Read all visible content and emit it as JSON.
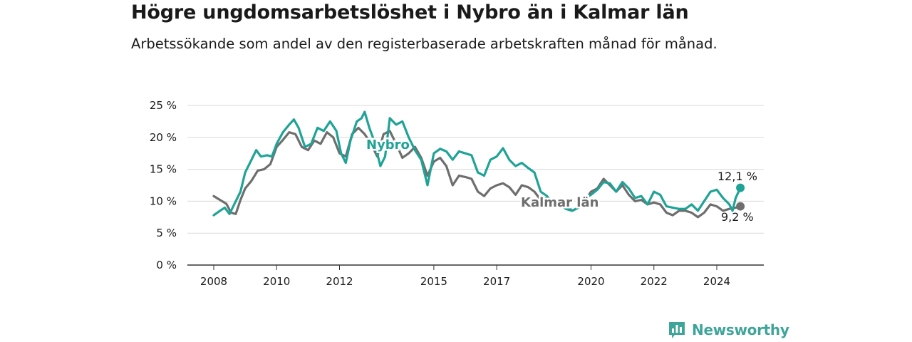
{
  "header": {
    "title": "Högre ungdomsarbetslöshet i Nybro än i Kalmar län",
    "subtitle": "Arbetssökande som andel av den registerbaserade arbetskraften månad för månad."
  },
  "brand": {
    "name": "Newsworthy",
    "icon": "bar-chart-icon",
    "color": "#3fa59a"
  },
  "chart_data": {
    "type": "line",
    "xlim": [
      2008,
      2025.2
    ],
    "ylim": [
      0,
      25
    ],
    "x_ticks": [
      {
        "value": 2008,
        "label": "2008"
      },
      {
        "value": 2010,
        "label": "2010"
      },
      {
        "value": 2012,
        "label": "2012"
      },
      {
        "value": 2015,
        "label": "2015"
      },
      {
        "value": 2017,
        "label": "2017"
      },
      {
        "value": 2020,
        "label": "2020"
      },
      {
        "value": 2022,
        "label": "2022"
      },
      {
        "value": 2024,
        "label": "2024"
      }
    ],
    "y_ticks": [
      {
        "value": 0,
        "label": "0 %"
      },
      {
        "value": 5,
        "label": "5 %"
      },
      {
        "value": 10,
        "label": "10 %"
      },
      {
        "value": 15,
        "label": "15 %"
      },
      {
        "value": 20,
        "label": "20 %"
      },
      {
        "value": 25,
        "label": "25 %"
      }
    ],
    "grid": true,
    "series": [
      {
        "name": "Kalmar län",
        "color": "#6e6e6e",
        "end_label": "9,2 %",
        "points": [
          [
            2008.0,
            10.8
          ],
          [
            2008.2,
            10.2
          ],
          [
            2008.4,
            9.6
          ],
          [
            2008.55,
            8.2
          ],
          [
            2008.7,
            8.0
          ],
          [
            2008.85,
            10.2
          ],
          [
            2009.0,
            12.0
          ],
          [
            2009.2,
            13.2
          ],
          [
            2009.4,
            14.8
          ],
          [
            2009.6,
            15.0
          ],
          [
            2009.8,
            15.8
          ],
          [
            2010.0,
            18.5
          ],
          [
            2010.2,
            19.6
          ],
          [
            2010.4,
            20.8
          ],
          [
            2010.6,
            20.5
          ],
          [
            2010.8,
            18.5
          ],
          [
            2011.0,
            18.0
          ],
          [
            2011.2,
            19.5
          ],
          [
            2011.4,
            19.0
          ],
          [
            2011.6,
            20.8
          ],
          [
            2011.8,
            20.0
          ],
          [
            2012.0,
            17.5
          ],
          [
            2012.2,
            17.0
          ],
          [
            2012.4,
            20.5
          ],
          [
            2012.6,
            21.5
          ],
          [
            2012.8,
            20.5
          ],
          [
            2013.0,
            19.0
          ],
          [
            2013.2,
            17.0
          ],
          [
            2013.4,
            20.5
          ],
          [
            2013.6,
            21.0
          ],
          [
            2013.8,
            19.0
          ],
          [
            2014.0,
            16.8
          ],
          [
            2014.2,
            17.5
          ],
          [
            2014.4,
            18.5
          ],
          [
            2014.6,
            16.8
          ],
          [
            2014.8,
            14.0
          ],
          [
            2015.0,
            16.2
          ],
          [
            2015.2,
            16.8
          ],
          [
            2015.4,
            15.5
          ],
          [
            2015.6,
            12.5
          ],
          [
            2015.8,
            14.0
          ],
          [
            2016.0,
            13.8
          ],
          [
            2016.2,
            13.5
          ],
          [
            2016.4,
            11.5
          ],
          [
            2016.6,
            10.8
          ],
          [
            2016.8,
            12.0
          ],
          [
            2017.0,
            12.5
          ],
          [
            2017.2,
            12.8
          ],
          [
            2017.4,
            12.2
          ],
          [
            2017.6,
            11.0
          ],
          [
            2017.8,
            12.5
          ],
          [
            2018.0,
            12.2
          ],
          [
            2018.2,
            11.5
          ],
          [
            2018.4,
            10.2
          ],
          [
            2018.6,
            10.5
          ],
          [
            2018.8,
            9.5
          ],
          [
            2019.0,
            10.2
          ],
          [
            2019.2,
            9.5
          ],
          [
            2019.4,
            8.5
          ],
          [
            2019.6,
            9.0
          ],
          [
            2019.8,
            10.0
          ],
          [
            2020.0,
            11.5
          ],
          [
            2020.2,
            12.0
          ],
          [
            2020.4,
            13.5
          ],
          [
            2020.6,
            12.5
          ],
          [
            2020.8,
            11.5
          ],
          [
            2021.0,
            12.5
          ],
          [
            2021.2,
            11.0
          ],
          [
            2021.4,
            10.0
          ],
          [
            2021.6,
            10.2
          ],
          [
            2021.8,
            9.5
          ],
          [
            2022.0,
            9.8
          ],
          [
            2022.2,
            9.5
          ],
          [
            2022.4,
            8.2
          ],
          [
            2022.6,
            7.8
          ],
          [
            2022.8,
            8.5
          ],
          [
            2023.0,
            8.5
          ],
          [
            2023.2,
            8.2
          ],
          [
            2023.4,
            7.5
          ],
          [
            2023.6,
            8.2
          ],
          [
            2023.8,
            9.5
          ],
          [
            2024.0,
            9.2
          ],
          [
            2024.2,
            8.5
          ],
          [
            2024.4,
            8.8
          ],
          [
            2024.6,
            9.0
          ],
          [
            2024.75,
            9.2
          ]
        ]
      },
      {
        "name": "Nybro",
        "color": "#1fa396",
        "end_label": "12,1 %",
        "points": [
          [
            2008.0,
            7.8
          ],
          [
            2008.2,
            8.5
          ],
          [
            2008.35,
            9.0
          ],
          [
            2008.5,
            8.0
          ],
          [
            2008.65,
            9.5
          ],
          [
            2008.85,
            11.5
          ],
          [
            2009.0,
            14.5
          ],
          [
            2009.2,
            16.5
          ],
          [
            2009.35,
            18.0
          ],
          [
            2009.5,
            17.0
          ],
          [
            2009.7,
            17.2
          ],
          [
            2009.85,
            17.0
          ],
          [
            2010.0,
            19.0
          ],
          [
            2010.2,
            20.8
          ],
          [
            2010.4,
            22.0
          ],
          [
            2010.55,
            22.8
          ],
          [
            2010.7,
            21.5
          ],
          [
            2010.9,
            18.5
          ],
          [
            2011.1,
            19.0
          ],
          [
            2011.3,
            21.5
          ],
          [
            2011.5,
            21.0
          ],
          [
            2011.7,
            22.5
          ],
          [
            2011.9,
            21.0
          ],
          [
            2012.05,
            17.5
          ],
          [
            2012.2,
            16.0
          ],
          [
            2012.35,
            19.5
          ],
          [
            2012.55,
            22.5
          ],
          [
            2012.7,
            23.0
          ],
          [
            2012.8,
            24.0
          ],
          [
            2012.95,
            21.5
          ],
          [
            2013.1,
            19.5
          ],
          [
            2013.3,
            15.5
          ],
          [
            2013.45,
            17.0
          ],
          [
            2013.6,
            23.0
          ],
          [
            2013.8,
            22.0
          ],
          [
            2014.0,
            22.5
          ],
          [
            2014.2,
            20.0
          ],
          [
            2014.4,
            18.0
          ],
          [
            2014.6,
            16.5
          ],
          [
            2014.8,
            12.5
          ],
          [
            2015.0,
            17.5
          ],
          [
            2015.2,
            18.2
          ],
          [
            2015.4,
            17.8
          ],
          [
            2015.6,
            16.5
          ],
          [
            2015.8,
            17.8
          ],
          [
            2016.0,
            17.5
          ],
          [
            2016.2,
            17.2
          ],
          [
            2016.4,
            14.5
          ],
          [
            2016.6,
            14.0
          ],
          [
            2016.8,
            16.5
          ],
          [
            2017.0,
            17.0
          ],
          [
            2017.2,
            18.3
          ],
          [
            2017.4,
            16.5
          ],
          [
            2017.6,
            15.5
          ],
          [
            2017.8,
            16.0
          ],
          [
            2018.0,
            15.2
          ],
          [
            2018.2,
            14.5
          ],
          [
            2018.4,
            11.5
          ],
          [
            2018.6,
            10.8
          ],
          [
            2018.8,
            9.5
          ],
          [
            2019.0,
            9.5
          ],
          [
            2019.2,
            8.8
          ],
          [
            2019.4,
            8.5
          ],
          [
            2019.6,
            9.0
          ],
          [
            2019.8,
            10.5
          ],
          [
            2020.0,
            11.0
          ],
          [
            2020.2,
            11.8
          ],
          [
            2020.4,
            13.0
          ],
          [
            2020.6,
            12.8
          ],
          [
            2020.8,
            11.5
          ],
          [
            2021.0,
            13.0
          ],
          [
            2021.2,
            12.0
          ],
          [
            2021.4,
            10.5
          ],
          [
            2021.6,
            10.8
          ],
          [
            2021.8,
            9.5
          ],
          [
            2022.0,
            11.5
          ],
          [
            2022.2,
            11.0
          ],
          [
            2022.4,
            9.2
          ],
          [
            2022.6,
            9.0
          ],
          [
            2022.8,
            8.8
          ],
          [
            2023.0,
            8.8
          ],
          [
            2023.2,
            9.5
          ],
          [
            2023.4,
            8.5
          ],
          [
            2023.6,
            10.0
          ],
          [
            2023.8,
            11.5
          ],
          [
            2024.0,
            11.8
          ],
          [
            2024.2,
            10.5
          ],
          [
            2024.4,
            9.5
          ],
          [
            2024.5,
            8.5
          ],
          [
            2024.6,
            10.5
          ],
          [
            2024.75,
            12.1
          ]
        ]
      }
    ]
  }
}
